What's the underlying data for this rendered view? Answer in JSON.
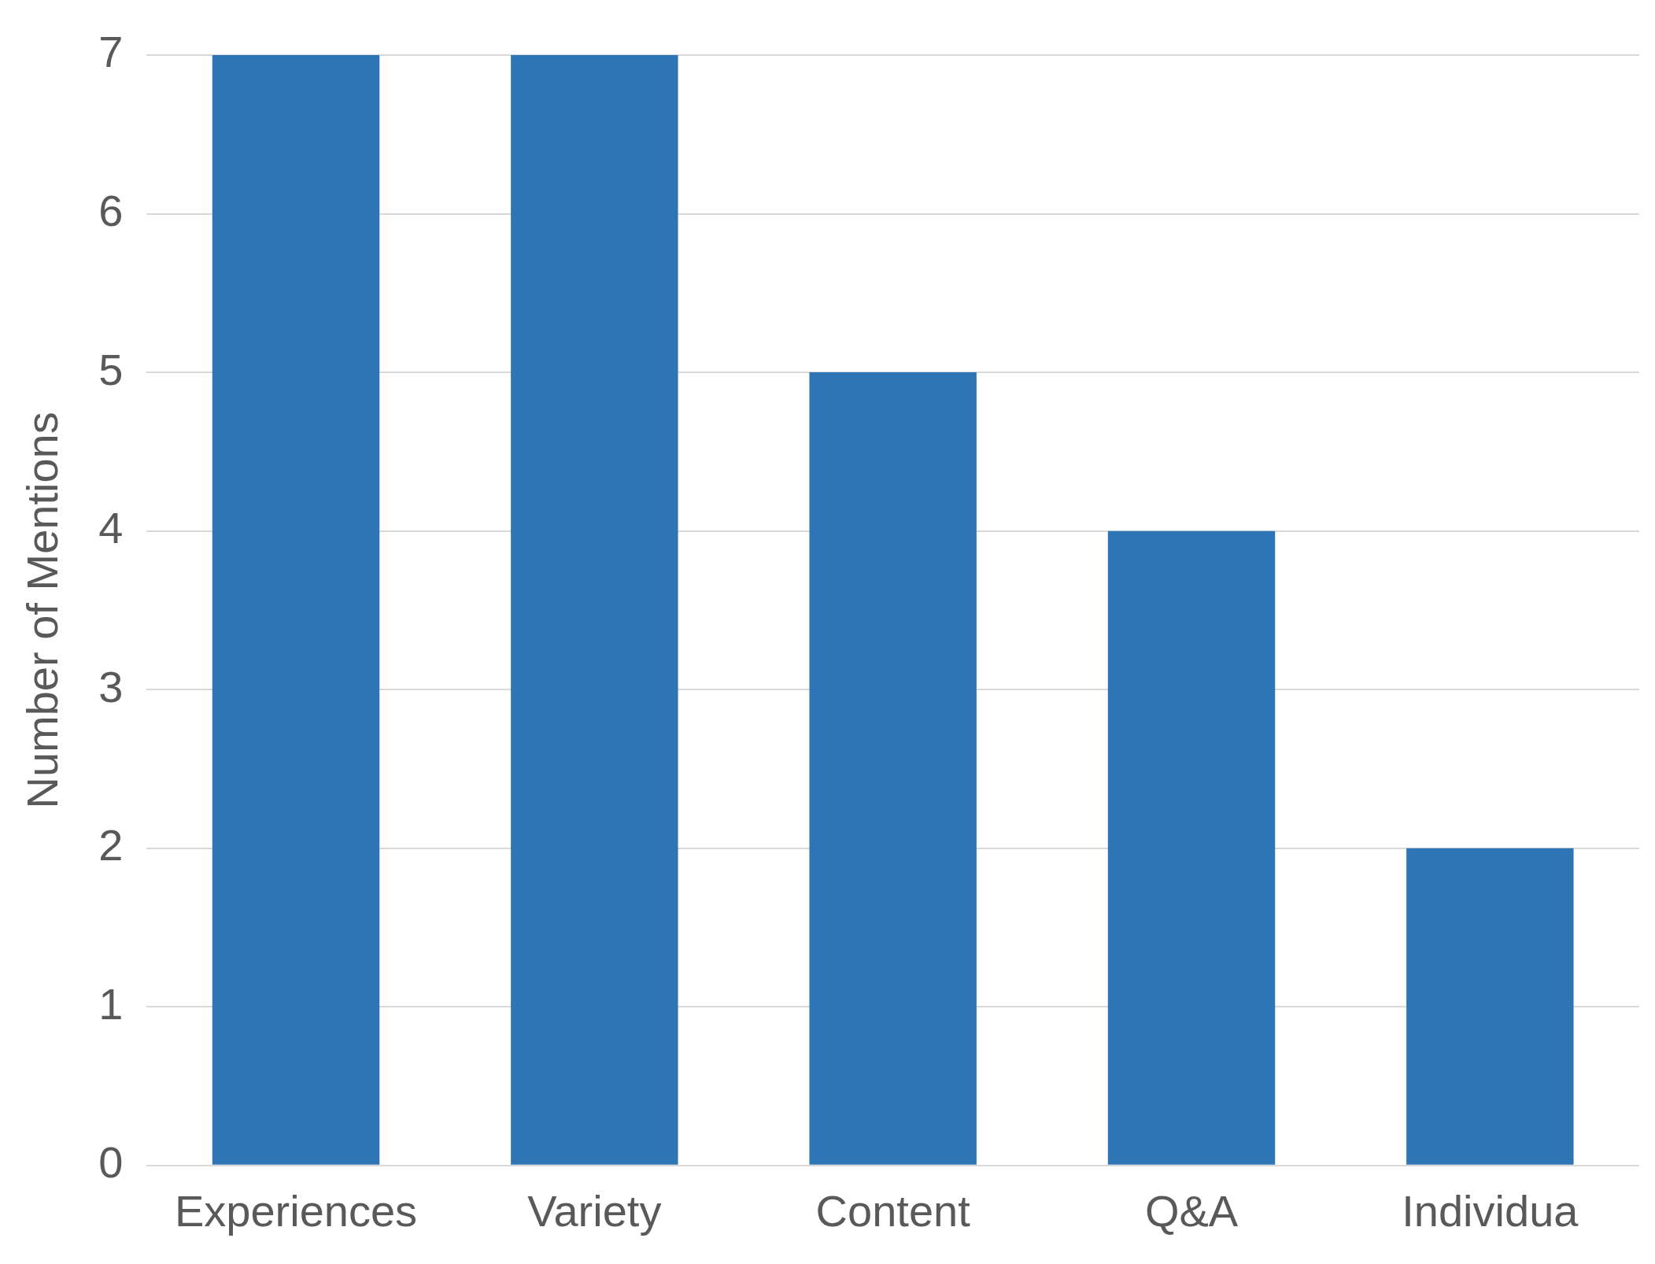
{
  "chart_data": {
    "type": "bar",
    "ylabel": "Number of Mentions",
    "categories": [
      "Experiences",
      "Variety",
      "Content",
      "Q&A",
      "Individua"
    ],
    "values": [
      7,
      7,
      5,
      4,
      2
    ],
    "color": "#2e75b6",
    "ylim": [
      0,
      7
    ],
    "yticks": [
      0,
      1,
      2,
      3,
      4,
      5,
      6,
      7
    ],
    "grid": "y",
    "legend": false
  }
}
